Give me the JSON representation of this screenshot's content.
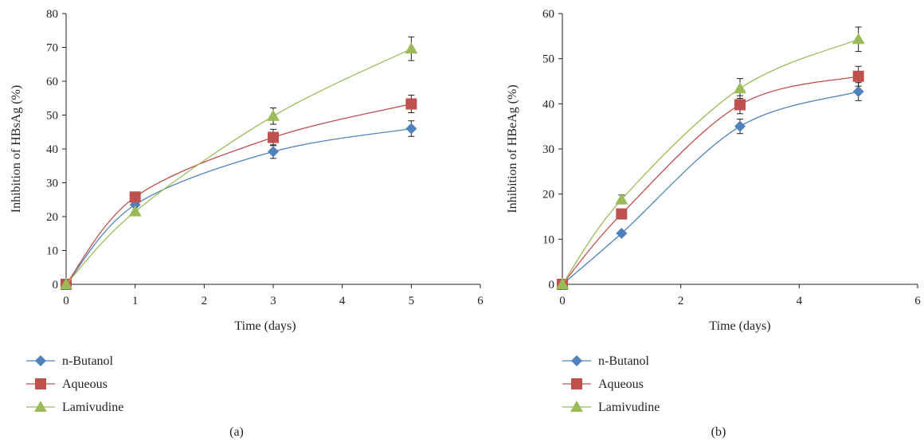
{
  "chart_data": [
    {
      "type": "line",
      "caption": "(a)",
      "xlabel": "Time (days)",
      "ylabel": "Inhibition of HBsAg (%)",
      "xlim": [
        0,
        6
      ],
      "ylim": [
        0,
        80
      ],
      "xticks": [
        0,
        1,
        2,
        3,
        4,
        5,
        6
      ],
      "yticks": [
        0,
        10,
        20,
        30,
        40,
        50,
        60,
        70,
        80
      ],
      "grid": false,
      "legend_position": "bottom-left",
      "series": [
        {
          "name": "n-Butanol",
          "color": "#4f81bd",
          "marker": "diamond",
          "x": [
            0,
            1,
            3,
            5
          ],
          "y": [
            0,
            23.5,
            39.2,
            46.0
          ],
          "err": [
            0,
            0,
            2.0,
            2.3
          ]
        },
        {
          "name": "Aqueous",
          "color": "#c0504d",
          "marker": "square",
          "x": [
            0,
            1,
            3,
            5
          ],
          "y": [
            0,
            25.8,
            43.4,
            53.3
          ],
          "err": [
            0,
            0,
            2.4,
            2.6
          ]
        },
        {
          "name": "Lamivudine",
          "color": "#9bbb59",
          "marker": "triangle",
          "x": [
            0,
            1,
            3,
            5
          ],
          "y": [
            0,
            21.5,
            49.7,
            69.6
          ],
          "err": [
            0,
            0,
            2.4,
            3.5
          ]
        }
      ]
    },
    {
      "type": "line",
      "caption": "(b)",
      "xlabel": "Time (days)",
      "ylabel": "Inhibition of HBeAg (%)",
      "xlim": [
        0,
        6
      ],
      "ylim": [
        0,
        60
      ],
      "xticks": [
        0,
        2,
        4,
        6
      ],
      "yticks": [
        0,
        10,
        20,
        30,
        40,
        50,
        60
      ],
      "grid": false,
      "legend_position": "bottom-left",
      "series": [
        {
          "name": "n-Butanol",
          "color": "#4f81bd",
          "marker": "diamond",
          "x": [
            0,
            1,
            3,
            5
          ],
          "y": [
            0,
            11.3,
            35.0,
            42.7
          ],
          "err": [
            0,
            0,
            1.6,
            2.0
          ]
        },
        {
          "name": "Aqueous",
          "color": "#c0504d",
          "marker": "square",
          "x": [
            0,
            1,
            3,
            5
          ],
          "y": [
            0,
            15.6,
            39.8,
            46.1
          ],
          "err": [
            0,
            0,
            2.0,
            2.2
          ]
        },
        {
          "name": "Lamivudine",
          "color": "#9bbb59",
          "marker": "triangle",
          "x": [
            0,
            1,
            3,
            5
          ],
          "y": [
            0,
            18.8,
            43.4,
            54.3
          ],
          "err": [
            0,
            1.0,
            2.2,
            2.7
          ]
        }
      ]
    }
  ]
}
